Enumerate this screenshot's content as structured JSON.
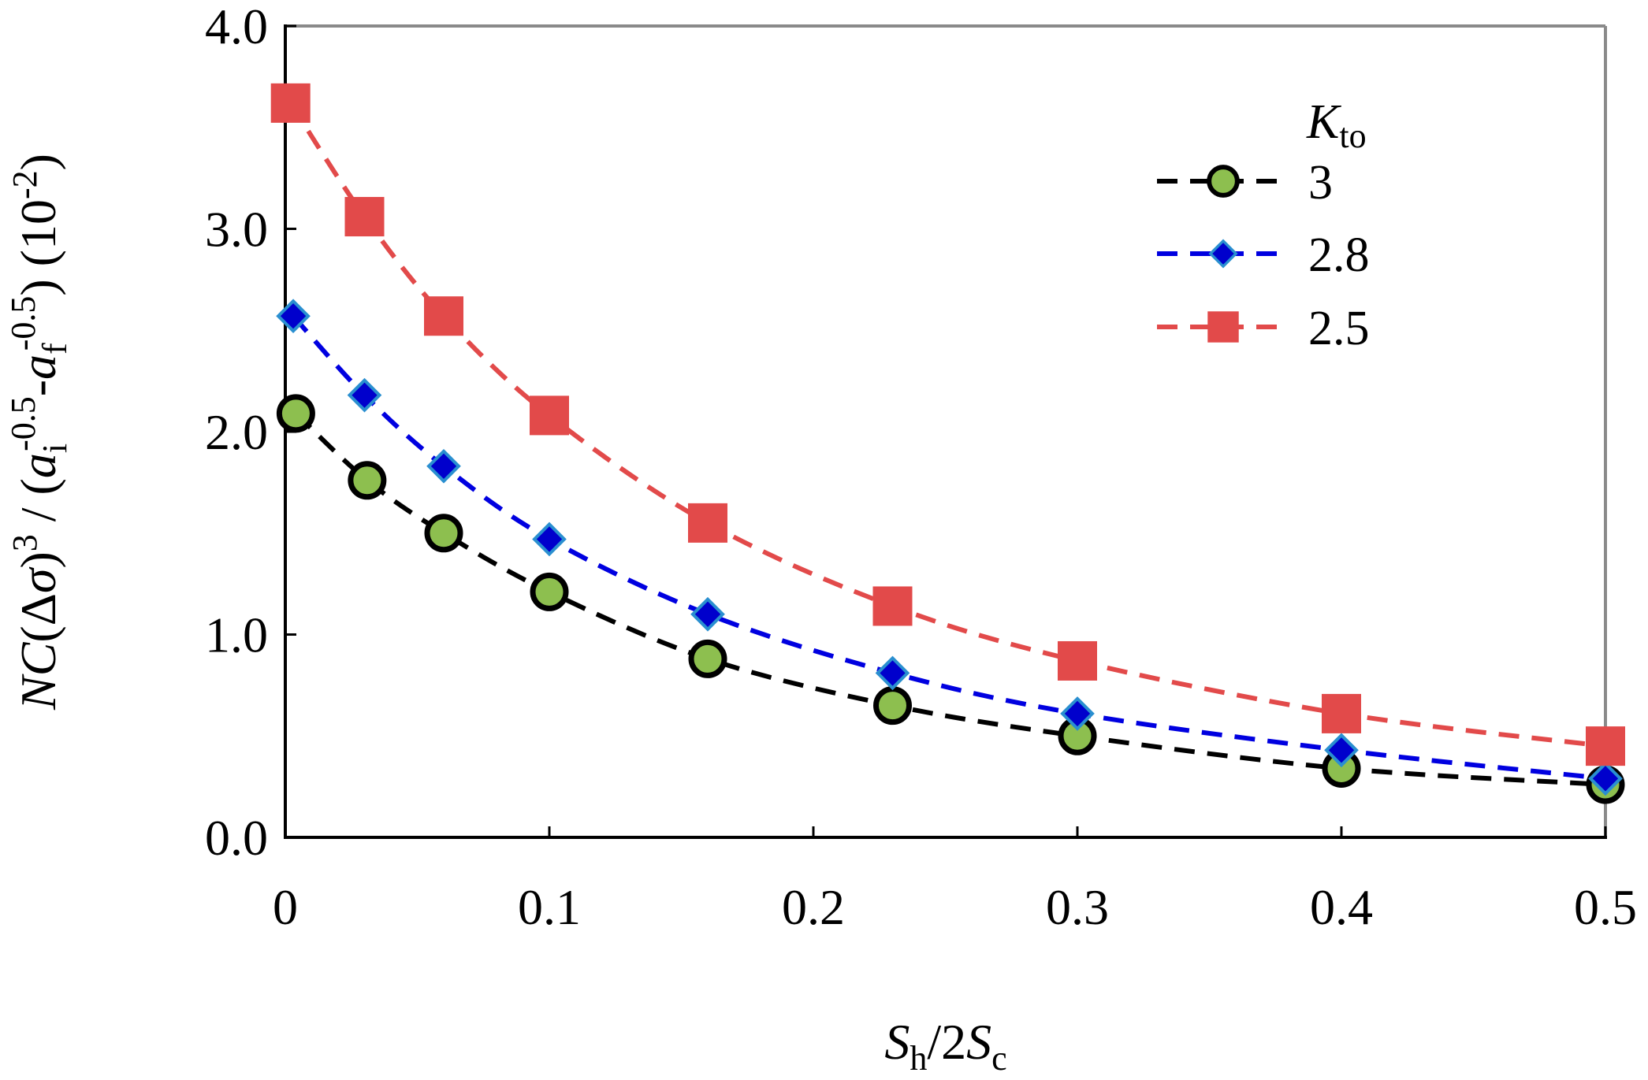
{
  "chart_data": {
    "type": "line",
    "title": "",
    "xlabel": {
      "main": "S",
      "main_sub": "h",
      "mid": "/2",
      "main2": "S",
      "main2_sub": "c"
    },
    "ylabel": {
      "p1": "NC",
      "p2": "(Δ",
      "p3": "σ",
      "p4": ")",
      "p4_sup": "3",
      "p5": " / (",
      "p6": "a",
      "p6_sub": "i",
      "p6_sup": "-0.5",
      "p7": "-",
      "p8": "a",
      "p8_sub": "f",
      "p8_sup": "-0.5",
      "p9": ") (10",
      "p9_sup": "-2",
      "p10": ")"
    },
    "xlim": [
      0,
      0.5
    ],
    "ylim": [
      0,
      4.0
    ],
    "x_ticks": [
      0,
      0.1,
      0.2,
      0.3,
      0.4,
      0.5
    ],
    "x_tick_labels": [
      "0",
      "0.1",
      "0.2",
      "0.3",
      "0.4",
      "0.5"
    ],
    "y_ticks": [
      0,
      1.0,
      2.0,
      3.0,
      4.0
    ],
    "y_tick_labels": [
      "0.0",
      "1.0",
      "2.0",
      "3.0",
      "4.0"
    ],
    "legend_title": {
      "main": "K",
      "sub": "to"
    },
    "legend_position": "top-right",
    "series": [
      {
        "name": "3",
        "marker": "circle",
        "line_color": "#000000",
        "marker_fill": "#8dbf4f",
        "marker_edge": "#000000",
        "x": [
          0.004,
          0.031,
          0.06,
          0.1,
          0.16,
          0.23,
          0.3,
          0.4,
          0.5
        ],
        "y": [
          2.09,
          1.76,
          1.5,
          1.21,
          0.88,
          0.65,
          0.5,
          0.34,
          0.26
        ]
      },
      {
        "name": "2.8",
        "marker": "diamond",
        "line_color": "#0000e0",
        "marker_fill": "#0000cc",
        "marker_edge": "#2a8fd0",
        "x": [
          0.003,
          0.03,
          0.06,
          0.1,
          0.16,
          0.23,
          0.3,
          0.4,
          0.5
        ],
        "y": [
          2.57,
          2.18,
          1.83,
          1.47,
          1.1,
          0.81,
          0.61,
          0.43,
          0.29
        ]
      },
      {
        "name": "2.5",
        "marker": "square",
        "line_color": "#e24a4a",
        "marker_fill": "#e24a4a",
        "marker_edge": "#e24a4a",
        "x": [
          0.002,
          0.03,
          0.06,
          0.1,
          0.16,
          0.23,
          0.3,
          0.4,
          0.5
        ],
        "y": [
          3.62,
          3.06,
          2.57,
          2.08,
          1.55,
          1.14,
          0.87,
          0.61,
          0.45
        ]
      }
    ]
  }
}
